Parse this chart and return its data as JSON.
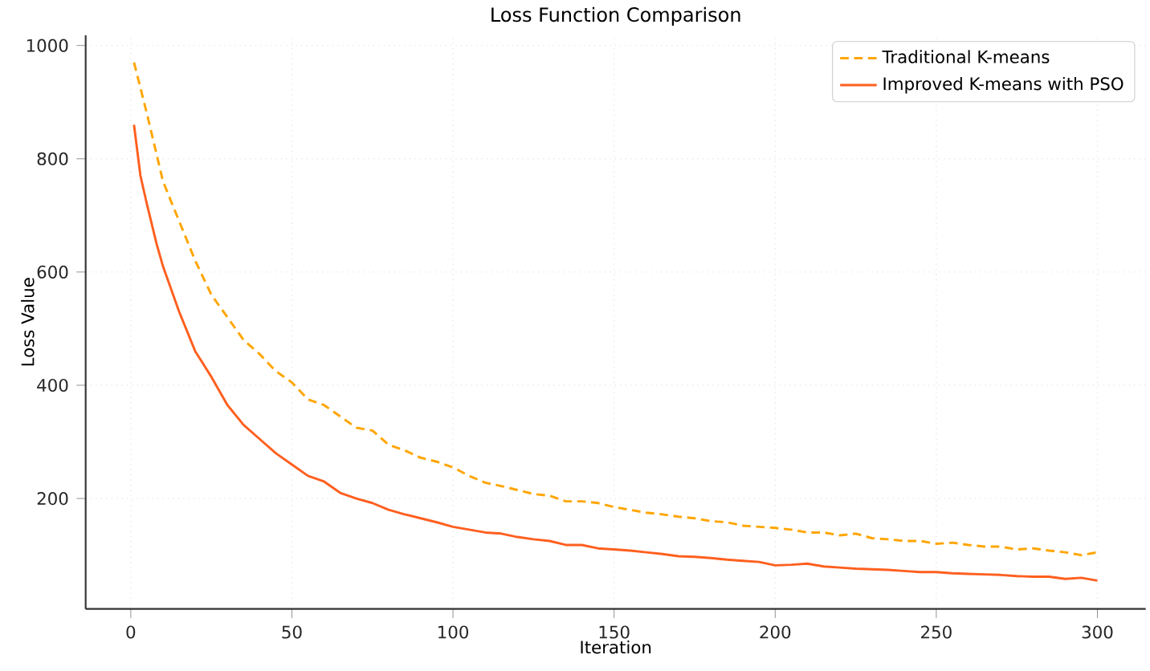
{
  "chart_data": {
    "type": "line",
    "title": "Loss Function Comparison",
    "xlabel": "Iteration",
    "ylabel": "Loss Value",
    "xlim": [
      -14,
      315
    ],
    "ylim": [
      5,
      1018
    ],
    "xticks": [
      0,
      50,
      100,
      150,
      200,
      250,
      300
    ],
    "yticks": [
      200,
      400,
      600,
      800,
      1000
    ],
    "grid": true,
    "legend": "top right",
    "marker": "none",
    "series": [
      {
        "name": "Traditional K-means",
        "color": "#ffa500",
        "line_style": "dashed",
        "x": [
          1,
          5,
          10,
          15,
          20,
          25,
          30,
          35,
          40,
          45,
          50,
          55,
          60,
          65,
          70,
          75,
          80,
          85,
          90,
          95,
          100,
          105,
          110,
          115,
          120,
          125,
          130,
          135,
          140,
          145,
          150,
          155,
          160,
          165,
          170,
          175,
          180,
          185,
          190,
          195,
          200,
          205,
          210,
          215,
          220,
          225,
          230,
          235,
          240,
          245,
          250,
          255,
          260,
          265,
          270,
          275,
          280,
          285,
          290,
          295,
          300
        ],
        "values": [
          970,
          880,
          760,
          690,
          620,
          560,
          520,
          480,
          455,
          425,
          405,
          375,
          365,
          345,
          325,
          320,
          295,
          285,
          272,
          265,
          255,
          240,
          228,
          222,
          215,
          208,
          205,
          195,
          195,
          192,
          185,
          180,
          175,
          172,
          168,
          165,
          160,
          158,
          152,
          150,
          148,
          145,
          140,
          140,
          135,
          138,
          130,
          128,
          125,
          125,
          120,
          122,
          118,
          115,
          115,
          110,
          112,
          108,
          105,
          100,
          105
        ]
      },
      {
        "name": "Improved K-means with PSO",
        "color": "#ff5f1f",
        "line_style": "solid",
        "x": [
          1,
          3,
          5,
          8,
          10,
          15,
          20,
          25,
          30,
          35,
          40,
          45,
          50,
          55,
          60,
          65,
          70,
          75,
          80,
          85,
          90,
          95,
          100,
          105,
          110,
          115,
          120,
          125,
          130,
          135,
          140,
          145,
          150,
          155,
          160,
          165,
          170,
          175,
          180,
          185,
          190,
          195,
          200,
          205,
          210,
          215,
          220,
          225,
          230,
          235,
          240,
          245,
          250,
          255,
          260,
          265,
          270,
          275,
          280,
          285,
          290,
          295,
          300
        ],
        "values": [
          860,
          770,
          720,
          650,
          610,
          530,
          460,
          415,
          365,
          330,
          305,
          280,
          260,
          240,
          230,
          210,
          200,
          192,
          180,
          172,
          165,
          158,
          150,
          145,
          140,
          138,
          132,
          128,
          125,
          118,
          118,
          112,
          110,
          108,
          105,
          102,
          98,
          97,
          95,
          92,
          90,
          88,
          82,
          83,
          85,
          80,
          78,
          76,
          75,
          74,
          72,
          70,
          70,
          68,
          67,
          66,
          65,
          63,
          62,
          62,
          58,
          60,
          55
        ]
      }
    ]
  }
}
